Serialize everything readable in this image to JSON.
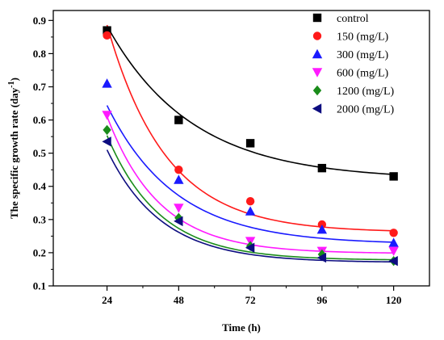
{
  "chart_data": {
    "type": "scatter",
    "xlabel": "Time (h)",
    "ylabel": "The specific growth rate (day",
    "ylabel_sup": "-1",
    "ylabel_tail": ")",
    "x_ticks": [
      "24",
      "48",
      "72",
      "96",
      "120"
    ],
    "y_ticks": [
      "0.1",
      "0.2",
      "0.3",
      "0.4",
      "0.5",
      "0.6",
      "0.7",
      "0.8",
      "0.9"
    ],
    "xlim": [
      6,
      132
    ],
    "ylim": [
      0.1,
      0.93
    ],
    "grid": false,
    "legend_position": "top-right",
    "series": [
      {
        "name": "control",
        "marker": "square",
        "color": "#000000",
        "x": [
          24,
          48,
          72,
          96,
          120
        ],
        "y": [
          0.87,
          0.6,
          0.53,
          0.455,
          0.43
        ]
      },
      {
        "name": "150 (mg/L)",
        "marker": "circle",
        "color": "#ff1a1a",
        "x": [
          24,
          48,
          72,
          96,
          120
        ],
        "y": [
          0.855,
          0.45,
          0.355,
          0.285,
          0.26
        ]
      },
      {
        "name": "300 (mg/L)",
        "marker": "triangle-up",
        "color": "#1a1aff",
        "x": [
          24,
          48,
          72,
          96,
          120
        ],
        "y": [
          0.71,
          0.42,
          0.325,
          0.27,
          0.23
        ]
      },
      {
        "name": "600 (mg/L)",
        "marker": "triangle-down",
        "color": "#ff1aff",
        "x": [
          24,
          48,
          72,
          96,
          120
        ],
        "y": [
          0.615,
          0.335,
          0.235,
          0.205,
          0.205
        ]
      },
      {
        "name": "1200 (mg/L)",
        "marker": "diamond",
        "color": "#1a8c1a",
        "x": [
          24,
          48,
          72,
          96,
          120
        ],
        "y": [
          0.57,
          0.305,
          0.22,
          0.195,
          0.175
        ]
      },
      {
        "name": "2000 (mg/L)",
        "marker": "triangle-left",
        "color": "#0d0d80",
        "x": [
          24,
          48,
          72,
          96,
          120
        ],
        "y": [
          0.535,
          0.295,
          0.215,
          0.185,
          0.175
        ]
      }
    ],
    "fit_curves": [
      {
        "series": "control",
        "a": 0.42,
        "b": 1.078,
        "k": 0.03516
      },
      {
        "series": "150 (mg/L)",
        "a": 0.2612,
        "b": 2.1044,
        "k": 0.05058
      },
      {
        "series": "300 (mg/L)",
        "a": 0.2252,
        "b": 1.1913,
        "k": 0.04357
      },
      {
        "series": "600 (mg/L)",
        "a": 0.1975,
        "b": 1.6225,
        "k": 0.05697
      },
      {
        "series": "1200 (mg/L)",
        "a": 0.1773,
        "b": 1.4722,
        "k": 0.05688
      },
      {
        "series": "2000 (mg/L)",
        "a": 0.1705,
        "b": 1.265,
        "k": 0.05481
      }
    ]
  }
}
